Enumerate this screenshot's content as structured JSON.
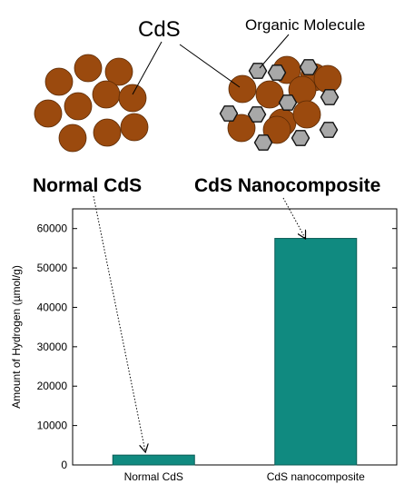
{
  "illustration": {
    "cds_label": "CdS",
    "organic_label": "Organic Molecule",
    "particle_color": "#9b4a0e",
    "particle_stroke": "#5a2a05",
    "hexagon_color": "#a8a8a8",
    "hexagon_stroke": "#111111"
  },
  "callouts": {
    "normal": "Normal CdS",
    "nanocomposite": "CdS Nanocomposite"
  },
  "chart_data": {
    "type": "bar",
    "categories": [
      "Normal CdS",
      "CdS nanocomposite"
    ],
    "values": [
      2500,
      57500
    ],
    "ylabel": "Amount of Hydrogen (µmol/g)",
    "xlabel": "",
    "ylim": [
      0,
      65000
    ],
    "yticks": [
      0,
      10000,
      20000,
      30000,
      40000,
      50000,
      60000
    ],
    "bar_color": "#108a80",
    "bar_stroke": "#0b5c56",
    "grid": false
  }
}
